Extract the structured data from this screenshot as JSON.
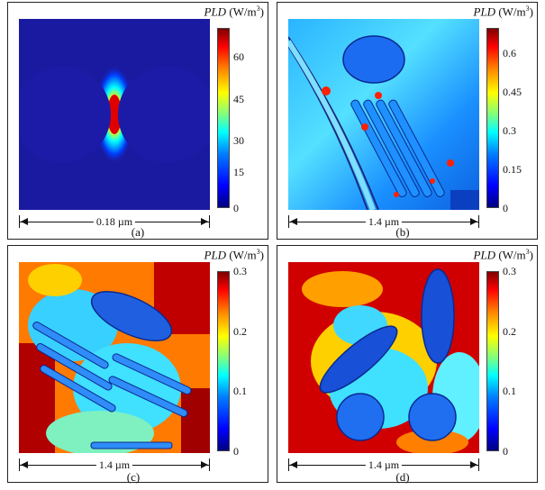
{
  "panels": [
    {
      "id": "a",
      "colorbar": {
        "title": "PLD",
        "unit": " (W/m",
        "unit_exp": "3",
        "unit_close": ")",
        "ticks": [
          "60",
          "45",
          "30",
          "15",
          "0"
        ],
        "min": 0,
        "max": 64
      },
      "scalebar": "0.18 µm",
      "caption": "(a)"
    },
    {
      "id": "b",
      "colorbar": {
        "title": "PLD",
        "unit": " (W/m",
        "unit_exp": "3",
        "unit_close": ")",
        "ticks": [
          "0.6",
          "0.45",
          "0.3",
          "0.15",
          "0"
        ],
        "min": 0,
        "max": 0.64
      },
      "scalebar": "1.4 µm",
      "caption": "(b)"
    },
    {
      "id": "c",
      "colorbar": {
        "title": "PLD",
        "unit": " (W/m",
        "unit_exp": "3",
        "unit_close": ")",
        "ticks": [
          "0.3",
          "0.2",
          "0.1",
          "0"
        ],
        "min": 0,
        "max": 0.3
      },
      "scalebar": "1.4 µm",
      "caption": "(c)"
    },
    {
      "id": "d",
      "colorbar": {
        "title": "PLD",
        "unit": " (W/m",
        "unit_exp": "3",
        "unit_close": ")",
        "ticks": [
          "0.3",
          "0.2",
          "0.1",
          "0"
        ],
        "min": 0,
        "max": 0.3
      },
      "scalebar": "1.4 µm",
      "caption": "(d)"
    }
  ],
  "colors": {
    "colormap": [
      "#00007f",
      "#0000ff",
      "#007fff",
      "#00ffff",
      "#7fff7f",
      "#ffff00",
      "#ff7f00",
      "#ff0000",
      "#7f0000"
    ]
  }
}
